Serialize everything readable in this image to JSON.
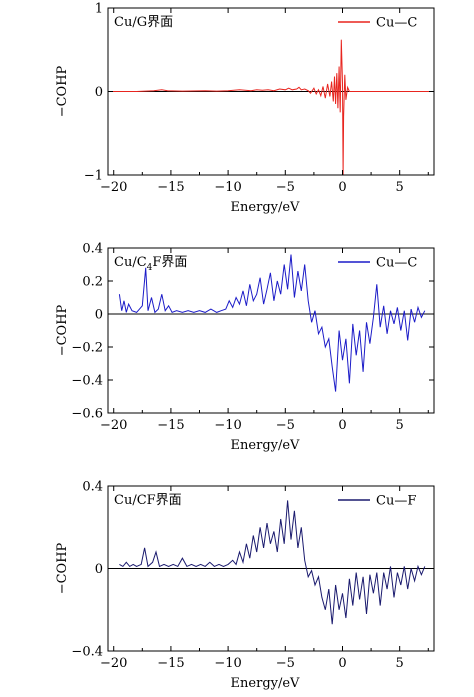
{
  "chart_data": [
    {
      "type": "line",
      "panel_label": "Cu/G界面",
      "xlabel": "Energy/eV",
      "ylabel": "−COHP",
      "xlim": [
        -20.5,
        8
      ],
      "ylim": [
        -1,
        1
      ],
      "xticks": [
        -20,
        -15,
        -10,
        -5,
        0,
        5
      ],
      "yticks": [
        -1,
        0,
        1
      ],
      "ytick_labels": [
        "−1",
        "0",
        "1"
      ],
      "legend_position": "top-right",
      "series": [
        {
          "name": "Cu—C",
          "color": "#e8251f",
          "x": [
            -20.5,
            -18,
            -16.5,
            -15.8,
            -15.3,
            -14,
            -12,
            -11,
            -10,
            -9,
            -8,
            -7.5,
            -7,
            -6.5,
            -6,
            -5.5,
            -5,
            -4.7,
            -4.4,
            -4.0,
            -3.8,
            -3.6,
            -3.3,
            -3.0,
            -2.8,
            -2.5,
            -2.3,
            -2.1,
            -1.9,
            -1.7,
            -1.5,
            -1.3,
            -1.1,
            -0.95,
            -0.8,
            -0.7,
            -0.6,
            -0.5,
            -0.4,
            -0.3,
            -0.2,
            -0.1,
            0.0,
            0.05,
            0.1,
            0.2,
            0.3,
            0.45,
            0.6,
            1.0,
            2,
            3,
            5,
            8
          ],
          "y": [
            0,
            0,
            0.01,
            0.02,
            0.01,
            0.005,
            0.01,
            0.005,
            0.01,
            0.02,
            0.01,
            0.02,
            0.015,
            0.02,
            0.01,
            0.03,
            0.02,
            0.04,
            0.02,
            0.03,
            0.05,
            0.02,
            0.03,
            0.01,
            -0.02,
            0.04,
            -0.03,
            0.02,
            -0.05,
            0.06,
            -0.08,
            0.09,
            -0.06,
            0.12,
            -0.12,
            0.18,
            -0.15,
            0.22,
            -0.2,
            0.3,
            -0.25,
            0.62,
            0.1,
            -1.0,
            -0.3,
            0.2,
            -0.1,
            0.05,
            0.0,
            0.0,
            0,
            0,
            0,
            0
          ]
        }
      ]
    },
    {
      "type": "line",
      "panel_label": "Cu/C",
      "panel_label_sub": "4",
      "panel_label_rest": "F界面",
      "xlabel": "Energy/eV",
      "ylabel": "−COHP",
      "xlim": [
        -20.5,
        8
      ],
      "ylim": [
        -0.6,
        0.4
      ],
      "xticks": [
        -20,
        -15,
        -10,
        -5,
        0,
        5
      ],
      "yticks": [
        -0.6,
        -0.4,
        -0.2,
        0,
        0.2,
        0.4
      ],
      "ytick_labels": [
        "−0.6",
        "−0.4",
        "−0.2",
        "0",
        "0.2",
        "0.4"
      ],
      "legend_position": "top-right",
      "series": [
        {
          "name": "Cu—C",
          "color": "#1c1cc8",
          "x": [
            -19.5,
            -19.3,
            -19.1,
            -18.9,
            -18.7,
            -18.4,
            -18.0,
            -17.5,
            -17.2,
            -17.0,
            -16.7,
            -16.4,
            -16.1,
            -15.8,
            -15.5,
            -15.2,
            -14.9,
            -14.5,
            -14.0,
            -13.5,
            -13.0,
            -12.5,
            -12.0,
            -11.5,
            -11.0,
            -10.6,
            -10.2,
            -9.9,
            -9.6,
            -9.3,
            -9.0,
            -8.7,
            -8.4,
            -8.1,
            -7.8,
            -7.5,
            -7.2,
            -6.9,
            -6.6,
            -6.3,
            -6.0,
            -5.7,
            -5.4,
            -5.1,
            -4.8,
            -4.5,
            -4.2,
            -3.9,
            -3.6,
            -3.3,
            -3.0,
            -2.7,
            -2.4,
            -2.1,
            -1.8,
            -1.5,
            -1.2,
            -0.9,
            -0.6,
            -0.3,
            0.0,
            0.3,
            0.6,
            0.9,
            1.2,
            1.5,
            1.8,
            2.1,
            2.4,
            2.7,
            3.0,
            3.3,
            3.6,
            3.9,
            4.2,
            4.5,
            4.8,
            5.1,
            5.4,
            5.7,
            6.0,
            6.3,
            6.6,
            6.9,
            7.2
          ],
          "y": [
            0.12,
            0.02,
            0.08,
            0.01,
            0.06,
            0.02,
            0.01,
            0.05,
            0.28,
            0.02,
            0.1,
            0.01,
            0.03,
            0.12,
            0.02,
            0.05,
            0.01,
            0.02,
            0.01,
            0.02,
            0.01,
            0.02,
            0.01,
            0.03,
            0.01,
            0.02,
            0.03,
            0.08,
            0.04,
            0.1,
            0.06,
            0.14,
            0.05,
            0.18,
            0.08,
            0.12,
            0.22,
            0.06,
            0.15,
            0.25,
            0.08,
            0.2,
            0.12,
            0.3,
            0.15,
            0.36,
            0.1,
            0.26,
            0.14,
            0.3,
            0.08,
            -0.05,
            0.02,
            -0.12,
            -0.08,
            -0.2,
            -0.15,
            -0.32,
            -0.47,
            -0.1,
            -0.28,
            -0.15,
            -0.42,
            -0.06,
            -0.25,
            -0.1,
            -0.35,
            -0.05,
            -0.18,
            -0.02,
            0.18,
            -0.08,
            0.05,
            -0.12,
            0.02,
            -0.06,
            0.04,
            -0.1,
            0.02,
            -0.16,
            0.03,
            -0.05,
            0.04,
            -0.02,
            0.02
          ]
        }
      ]
    },
    {
      "type": "line",
      "panel_label": "Cu/CF界面",
      "xlabel": "Energy/eV",
      "ylabel": "−COHP",
      "xlim": [
        -20.5,
        8
      ],
      "ylim": [
        -0.4,
        0.4
      ],
      "xticks": [
        -20,
        -15,
        -10,
        -5,
        0,
        5
      ],
      "yticks": [
        -0.4,
        0,
        0.4
      ],
      "ytick_labels": [
        "−0.4",
        "0",
        "0.4"
      ],
      "legend_position": "top-right",
      "series": [
        {
          "name": "Cu—F",
          "color": "#1a1a6e",
          "x": [
            -19.5,
            -19.2,
            -18.9,
            -18.6,
            -18.3,
            -18.0,
            -17.6,
            -17.3,
            -17.0,
            -16.6,
            -16.3,
            -16.0,
            -15.6,
            -15.2,
            -14.8,
            -14.4,
            -14.0,
            -13.6,
            -13.2,
            -12.8,
            -12.4,
            -12.0,
            -11.6,
            -11.2,
            -10.8,
            -10.4,
            -10.0,
            -9.6,
            -9.3,
            -9.0,
            -8.7,
            -8.4,
            -8.1,
            -7.8,
            -7.5,
            -7.2,
            -6.9,
            -6.6,
            -6.3,
            -6.0,
            -5.7,
            -5.4,
            -5.1,
            -4.8,
            -4.5,
            -4.2,
            -3.9,
            -3.6,
            -3.3,
            -3.0,
            -2.7,
            -2.4,
            -2.1,
            -1.8,
            -1.5,
            -1.2,
            -0.9,
            -0.6,
            -0.3,
            0.0,
            0.3,
            0.6,
            0.9,
            1.2,
            1.5,
            1.8,
            2.1,
            2.4,
            2.7,
            3.0,
            3.3,
            3.6,
            3.9,
            4.2,
            4.5,
            4.8,
            5.1,
            5.4,
            5.7,
            6.0,
            6.3,
            6.6,
            6.9,
            7.2
          ],
          "y": [
            0.02,
            0.01,
            0.03,
            0.01,
            0.02,
            0.01,
            0.02,
            0.1,
            0.01,
            0.03,
            0.08,
            0.01,
            0.02,
            0.01,
            0.02,
            0.01,
            0.05,
            0.01,
            0.02,
            0.01,
            0.02,
            0.01,
            0.03,
            0.01,
            0.02,
            0.01,
            0.02,
            0.04,
            0.02,
            0.08,
            0.03,
            0.12,
            0.05,
            0.16,
            0.08,
            0.2,
            0.1,
            0.22,
            0.12,
            0.18,
            0.08,
            0.24,
            0.12,
            0.33,
            0.14,
            0.28,
            0.1,
            0.2,
            0.04,
            -0.04,
            -0.01,
            -0.08,
            -0.04,
            -0.14,
            -0.2,
            -0.1,
            -0.27,
            -0.08,
            -0.2,
            -0.12,
            -0.24,
            -0.05,
            -0.18,
            -0.02,
            -0.15,
            -0.04,
            -0.22,
            -0.03,
            -0.12,
            -0.02,
            -0.18,
            -0.02,
            -0.1,
            0.01,
            -0.14,
            -0.02,
            -0.08,
            0.01,
            -0.1,
            0.0,
            -0.06,
            0.01,
            -0.03,
            0.01
          ]
        }
      ]
    }
  ]
}
